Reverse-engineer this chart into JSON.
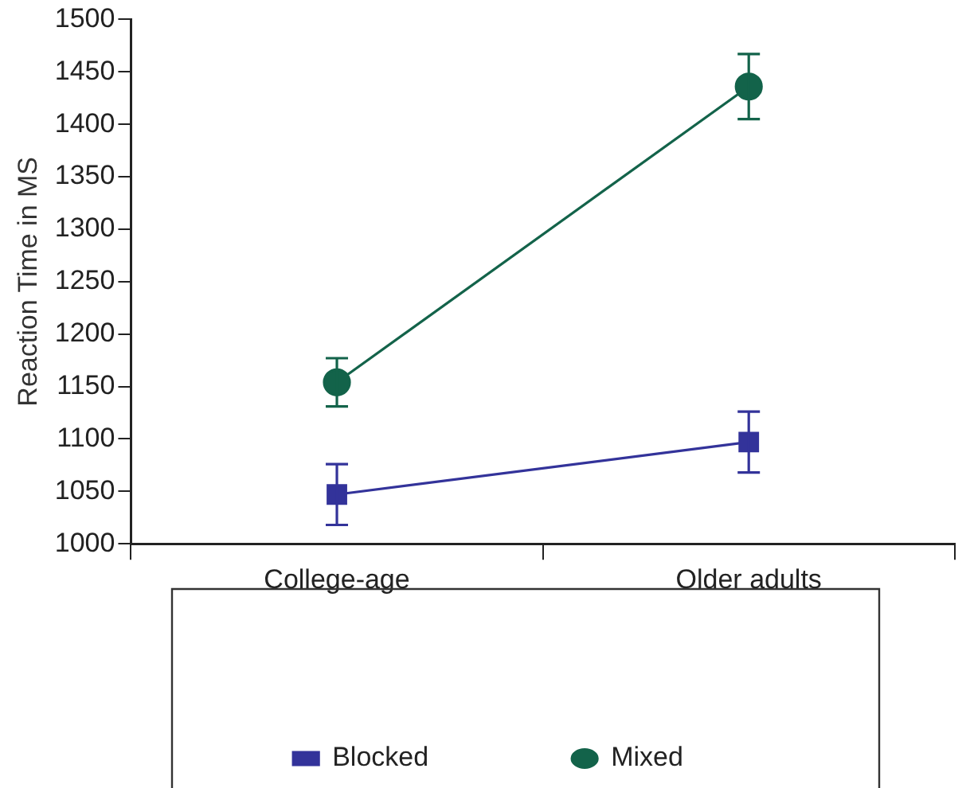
{
  "chart_data": {
    "type": "line",
    "ylabel": "Reaction Time in MS",
    "categories": [
      "College-age",
      "Older adults"
    ],
    "series": [
      {
        "name": "Blocked",
        "color": "#33339a",
        "values": [
          1047,
          1097
        ],
        "errors": [
          29,
          29
        ],
        "marker": "square"
      },
      {
        "name": "Mixed",
        "color": "#13634a",
        "values": [
          1154,
          1436
        ],
        "errors": [
          23,
          31
        ],
        "marker": "circle"
      }
    ],
    "ylim": [
      1000,
      1500
    ],
    "yticks": [
      1000,
      1050,
      1100,
      1150,
      1200,
      1250,
      1300,
      1350,
      1400,
      1450,
      1500
    ],
    "grid": false,
    "legend": "bottom"
  }
}
